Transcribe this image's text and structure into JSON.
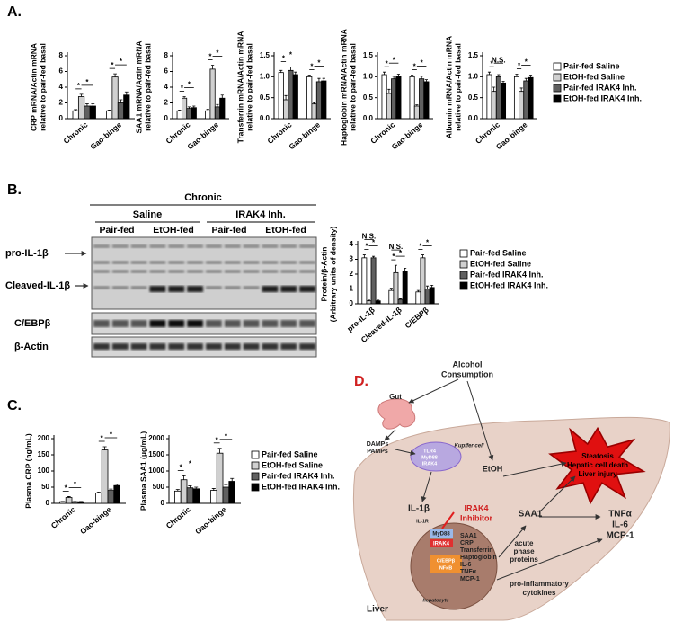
{
  "chart_data": [
    {
      "type": "bar",
      "panel": "A.",
      "ylabel": [
        "CRP mRNA/Actin mRNA",
        "relative to pair-fed basal"
      ],
      "categories": [
        "Chronic",
        "Gao-binge"
      ],
      "ylim": [
        0,
        8
      ],
      "yticks": [
        0,
        2,
        4,
        6,
        8
      ],
      "series": [
        {
          "name": "Pair-fed Saline",
          "color": "#ffffff",
          "values": [
            1.0,
            1.0
          ],
          "errors": [
            0.15,
            0.1
          ]
        },
        {
          "name": "EtOH-fed Saline",
          "color": "#d0d0d0",
          "values": [
            2.8,
            5.3
          ],
          "errors": [
            0.3,
            0.4
          ]
        },
        {
          "name": "Pair-fed IRAK4 Inh.",
          "color": "#606060",
          "values": [
            1.6,
            2.0
          ],
          "errors": [
            0.3,
            0.4
          ]
        },
        {
          "name": "EtOH-fed IRAK4 Inh.",
          "color": "#000000",
          "values": [
            1.6,
            3.0
          ],
          "errors": [
            0.3,
            0.4
          ]
        }
      ],
      "annotations": [
        [
          "*",
          "*"
        ],
        [
          "*",
          "*"
        ]
      ]
    },
    {
      "type": "bar",
      "ylabel": [
        "SAA1 mRNA/Actin mRNA",
        "relative to pair-fed basal"
      ],
      "categories": [
        "Chronic",
        "Gao-binge"
      ],
      "ylim": [
        0,
        8
      ],
      "yticks": [
        0,
        2,
        4,
        6,
        8
      ],
      "series": [
        {
          "name": "Pair-fed Saline",
          "color": "#ffffff",
          "values": [
            1.0,
            1.0
          ],
          "errors": [
            0.1,
            0.2
          ]
        },
        {
          "name": "EtOH-fed Saline",
          "color": "#d0d0d0",
          "values": [
            2.6,
            6.3
          ],
          "errors": [
            0.2,
            0.5
          ]
        },
        {
          "name": "Pair-fed IRAK4 Inh.",
          "color": "#606060",
          "values": [
            1.3,
            1.5
          ],
          "errors": [
            0.2,
            0.3
          ]
        },
        {
          "name": "EtOH-fed IRAK4 Inh.",
          "color": "#000000",
          "values": [
            1.4,
            2.6
          ],
          "errors": [
            0.2,
            0.4
          ]
        }
      ],
      "annotations": [
        [
          "*",
          "*"
        ],
        [
          "*",
          "*"
        ]
      ]
    },
    {
      "type": "bar",
      "ylabel": [
        "Transferrin mRNA/Actin mRNA",
        "relative to pair-fed basal"
      ],
      "categories": [
        "Chronic",
        "Gao-binge"
      ],
      "ylim": [
        0,
        1.5
      ],
      "yticks": [
        {
          "value": 0,
          "label": "0.0"
        },
        0.5,
        {
          "value": 1,
          "label": "1.0"
        },
        1.5
      ],
      "series": [
        {
          "name": "Pair-fed Saline",
          "color": "#ffffff",
          "values": [
            1.1,
            1.0
          ],
          "errors": [
            0.05,
            0.04
          ]
        },
        {
          "name": "EtOH-fed Saline",
          "color": "#d0d0d0",
          "values": [
            0.45,
            0.35
          ],
          "errors": [
            0.1,
            0.03
          ]
        },
        {
          "name": "Pair-fed IRAK4 Inh.",
          "color": "#606060",
          "values": [
            1.15,
            0.88
          ],
          "errors": [
            0.08,
            0.08
          ]
        },
        {
          "name": "EtOH-fed IRAK4 Inh.",
          "color": "#000000",
          "values": [
            1.05,
            0.9
          ],
          "errors": [
            0.06,
            0.06
          ]
        }
      ],
      "annotations": [
        [
          "*",
          "*"
        ],
        [
          "*",
          "*"
        ]
      ]
    },
    {
      "type": "bar",
      "ylabel": [
        "Haptoglobin mRNA/Actin mRNA",
        "relative to pair-fed basal"
      ],
      "categories": [
        "Chronic",
        "Gao-binge"
      ],
      "ylim": [
        0,
        1.5
      ],
      "yticks": [
        {
          "value": 0,
          "label": "0.0"
        },
        0.5,
        {
          "value": 1,
          "label": "1.0"
        },
        1.5
      ],
      "series": [
        {
          "name": "Pair-fed Saline",
          "color": "#ffffff",
          "values": [
            1.05,
            1.0
          ],
          "errors": [
            0.06,
            0.04
          ]
        },
        {
          "name": "EtOH-fed Saline",
          "color": "#d0d0d0",
          "values": [
            0.6,
            0.3
          ],
          "errors": [
            0.1,
            0.03
          ]
        },
        {
          "name": "Pair-fed IRAK4 Inh.",
          "color": "#606060",
          "values": [
            0.95,
            0.95
          ],
          "errors": [
            0.06,
            0.06
          ]
        },
        {
          "name": "EtOH-fed IRAK4 Inh.",
          "color": "#000000",
          "values": [
            1.0,
            0.88
          ],
          "errors": [
            0.06,
            0.05
          ]
        }
      ],
      "annotations": [
        [
          "*",
          "*"
        ],
        [
          "*",
          "*"
        ]
      ]
    },
    {
      "type": "bar",
      "ylabel": [
        "Albumin mRNA/Actin mRNA",
        "relative to pair-fed basal"
      ],
      "categories": [
        "Chronic",
        "Gao-binge"
      ],
      "ylim": [
        0,
        1.5
      ],
      "yticks": [
        {
          "value": 0,
          "label": "0.0"
        },
        0.5,
        {
          "value": 1,
          "label": "1.0"
        },
        1.5
      ],
      "legend": true,
      "series": [
        {
          "name": "Pair-fed Saline",
          "color": "#ffffff",
          "values": [
            1.05,
            1.0
          ],
          "errors": [
            0.06,
            0.06
          ]
        },
        {
          "name": "EtOH-fed Saline",
          "color": "#d0d0d0",
          "values": [
            0.65,
            0.65
          ],
          "errors": [
            0.1,
            0.08
          ]
        },
        {
          "name": "Pair-fed IRAK4 Inh.",
          "color": "#606060",
          "values": [
            1.0,
            0.9
          ],
          "errors": [
            0.05,
            0.06
          ]
        },
        {
          "name": "EtOH-fed IRAK4 Inh.",
          "color": "#000000",
          "values": [
            0.85,
            0.98
          ],
          "errors": [
            0.04,
            0.06
          ]
        }
      ],
      "annotations": [
        [
          "*",
          "N.S."
        ],
        [
          "*",
          "*"
        ]
      ]
    },
    {
      "type": "bar",
      "ylabel": [
        "Protein/β-Actin",
        "(Arbitrary units of density)"
      ],
      "categories": [
        "pro-IL-1β",
        "Cleaved-IL-1β",
        "C/EBPβ"
      ],
      "ylim": [
        0,
        4
      ],
      "yticks": [
        0,
        1,
        2,
        3,
        4
      ],
      "legend": true,
      "series": [
        {
          "name": "Pair-fed Saline",
          "color": "#ffffff",
          "values": [
            3.1,
            0.9,
            0.8
          ],
          "errors": [
            0.2,
            0.15,
            0.1
          ]
        },
        {
          "name": "EtOH-fed Saline",
          "color": "#d0d0d0",
          "values": [
            0.2,
            2.1,
            3.1
          ],
          "errors": [
            0.05,
            0.5,
            0.2
          ]
        },
        {
          "name": "Pair-fed IRAK4 Inh.",
          "color": "#606060",
          "values": [
            3.1,
            0.3,
            1.0
          ],
          "errors": [
            0.1,
            0.05,
            0.2
          ]
        },
        {
          "name": "EtOH-fed IRAK4 Inh.",
          "color": "#000000",
          "values": [
            0.2,
            2.2,
            1.1
          ],
          "errors": [
            0.05,
            0.2,
            0.15
          ]
        }
      ],
      "annotations": [
        [
          "*",
          "*",
          "N.S."
        ],
        [
          "*",
          "*",
          "N.S."
        ],
        [
          "*",
          "*"
        ]
      ]
    },
    {
      "type": "bar",
      "panel": "C.",
      "ylabel": [
        "Plasma CRP (ng/mL)"
      ],
      "categories": [
        "Chronic",
        "Gao-binge"
      ],
      "ylim": [
        0,
        200
      ],
      "yticks": [
        0,
        50,
        100,
        150,
        200
      ],
      "series": [
        {
          "name": "Pair-fed Saline",
          "color": "#ffffff",
          "values": [
            5,
            32
          ],
          "errors": [
            1,
            3
          ]
        },
        {
          "name": "EtOH-fed Saline",
          "color": "#d0d0d0",
          "values": [
            18,
            165
          ],
          "errors": [
            3,
            10
          ]
        },
        {
          "name": "Pair-fed IRAK4 Inh.",
          "color": "#606060",
          "values": [
            5,
            40
          ],
          "errors": [
            1,
            4
          ]
        },
        {
          "name": "EtOH-fed IRAK4 Inh.",
          "color": "#000000",
          "values": [
            5,
            55
          ],
          "errors": [
            1,
            4
          ]
        }
      ],
      "annotations": [
        [
          "*",
          "*"
        ],
        [
          "*",
          "*"
        ]
      ]
    },
    {
      "type": "bar",
      "ylabel": [
        "Plasma SAA1 (μg/mL)"
      ],
      "categories": [
        "Chronic",
        "Gao-binge"
      ],
      "ylim": [
        0,
        2000
      ],
      "yticks": [
        0,
        500,
        1000,
        1500,
        2000
      ],
      "legend": true,
      "series": [
        {
          "name": "Pair-fed Saline",
          "color": "#ffffff",
          "values": [
            380,
            400
          ],
          "errors": [
            50,
            60
          ]
        },
        {
          "name": "EtOH-fed Saline",
          "color": "#d0d0d0",
          "values": [
            730,
            1550
          ],
          "errors": [
            120,
            150
          ]
        },
        {
          "name": "Pair-fed IRAK4 Inh.",
          "color": "#606060",
          "values": [
            480,
            500
          ],
          "errors": [
            60,
            80
          ]
        },
        {
          "name": "EtOH-fed IRAK4 Inh.",
          "color": "#000000",
          "values": [
            450,
            680
          ],
          "errors": [
            50,
            90
          ]
        }
      ],
      "annotations": [
        [
          "*",
          "*"
        ],
        [
          "*",
          "*"
        ]
      ]
    }
  ],
  "blot": {
    "panel": "B.",
    "header": "Chronic",
    "groups": [
      "Saline",
      "IRAK4 Inh."
    ],
    "subgroups": [
      "Pair-fed",
      "EtOH-fed",
      "Pair-fed",
      "EtOH-fed"
    ],
    "rows": [
      "pro-IL-1β",
      "Cleaved-IL-1β",
      "C/EBPβ",
      "β-Actin"
    ]
  },
  "diagram": {
    "panel": "D.",
    "intake": [
      "Alcohol",
      "Consumption"
    ],
    "gut": "Gut",
    "signals": [
      "DAMPs",
      "PAMPs"
    ],
    "kupffer": "Kupffer cell",
    "kupffer_labels": [
      "TLR4",
      "MyD88",
      "IRAK4"
    ],
    "etoh": "EtOH",
    "injury": [
      "Steatosis",
      "Hepatic cell death",
      "Liver injury"
    ],
    "il1b": "IL-1β",
    "il1r": "IL-1R",
    "inhibitor": [
      "IRAK4",
      "Inhibitor"
    ],
    "saa1": "SAA1",
    "cytokines": [
      "TNFα",
      "IL-6",
      "MCP-1"
    ],
    "adaptor": "MyD88",
    "kinase": "IRAK4",
    "nucleus": [
      "C/EBPβ",
      "NFκB"
    ],
    "genes": [
      "SAA1",
      "CRP",
      "Transferrin",
      "Haptoglobin",
      "IL-6",
      "TNFα",
      "MCP-1"
    ],
    "app": [
      "acute",
      "phase",
      "proteins"
    ],
    "proinf": [
      "pro-inflammatory",
      "cytokines"
    ],
    "cell": "hepatocyte",
    "organ": "Liver"
  }
}
